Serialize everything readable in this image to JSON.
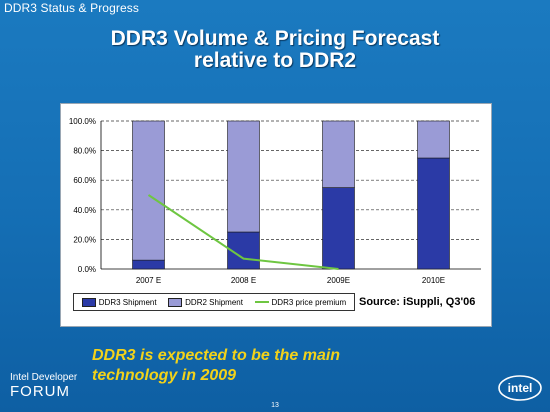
{
  "header": {
    "label": "DDR3 Status & Progress"
  },
  "slide": {
    "title_line1": "DDR3 Volume & Pricing Forecast",
    "title_line2": "relative to DDR2",
    "callout_line1": "DDR3 is expected to be the main",
    "callout_line2": "technology in 2009",
    "source": "Source: iSuppli, Q3'06",
    "page_number": "13"
  },
  "branding": {
    "idf_line1": "Intel Developer",
    "idf_line2": "FORUM",
    "intel_logo": "intel"
  },
  "colors": {
    "ddr3": "#2b3aa6",
    "ddr2": "#9a9bd6",
    "premium": "#6ec641"
  },
  "chart_data": {
    "type": "bar",
    "stacked": true,
    "categories": [
      "2007 E",
      "2008 E",
      "2009E",
      "2010E"
    ],
    "series": [
      {
        "name": "DDR3 Shipment",
        "kind": "bar",
        "values": [
          6,
          25,
          55,
          75
        ]
      },
      {
        "name": "DDR2 Shipment",
        "kind": "bar",
        "values": [
          94,
          75,
          45,
          25
        ]
      },
      {
        "name": "DDR3 price premium",
        "kind": "line",
        "values": [
          50,
          7,
          0,
          null
        ]
      }
    ],
    "yticks": [
      "100.0%",
      "80.0%",
      "60.0%",
      "40.0%",
      "20.0%",
      "0.0%"
    ],
    "ylim": [
      0,
      100
    ],
    "grid": true,
    "legend_position": "bottom"
  }
}
